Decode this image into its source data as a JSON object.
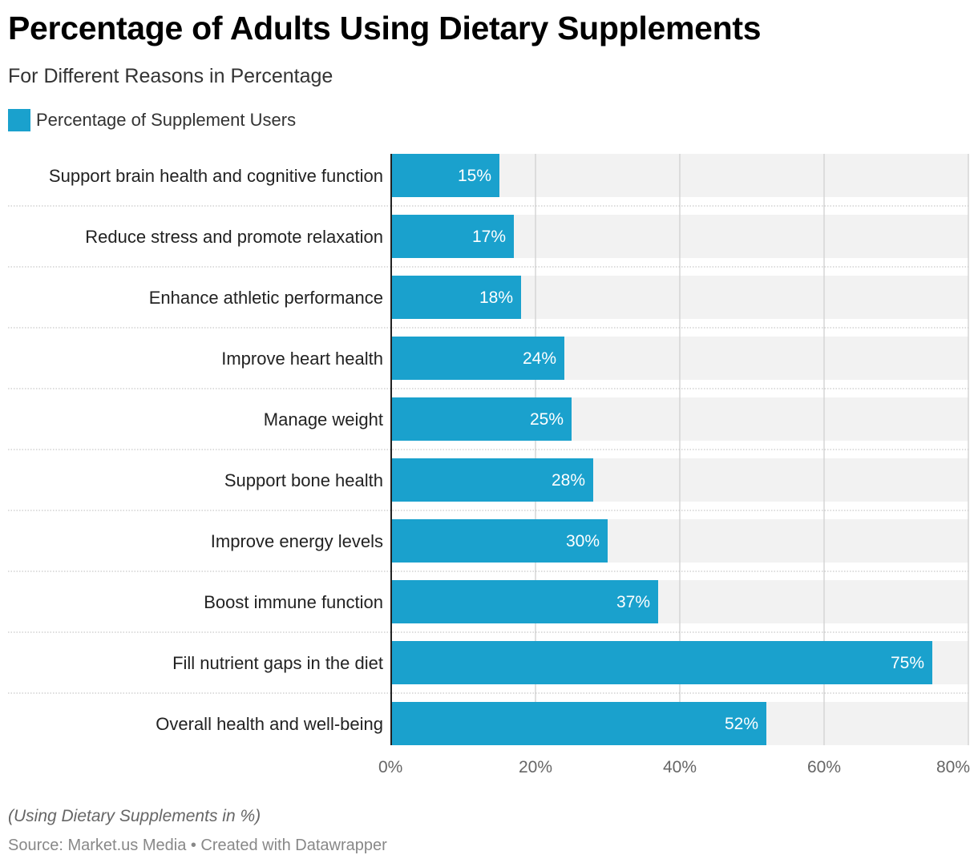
{
  "header": {
    "title": "Percentage of Adults Using Dietary Supplements",
    "subtitle": "For Different Reasons in Percentage"
  },
  "legend": {
    "label": "Percentage of Supplement Users",
    "color": "#1aa1cd"
  },
  "footer": {
    "notes": "(Using Dietary Supplements in %)",
    "source": "Source: Market.us Media • Created with Datawrapper"
  },
  "colors": {
    "bar": "#1aa1cd",
    "bar_background": "#f2f2f2",
    "grid": "#d0d0d0",
    "axis": "#222222",
    "value_label": "#ffffff",
    "tick_label": "#666666"
  },
  "chart_data": {
    "type": "bar",
    "orientation": "horizontal",
    "title": "Percentage of Adults Using Dietary Supplements",
    "subtitle": "For Different Reasons in Percentage",
    "xlabel": "",
    "ylabel": "",
    "xlim": [
      0,
      80
    ],
    "x_ticks": [
      0,
      20,
      40,
      60,
      80
    ],
    "x_tick_labels": [
      "0%",
      "20%",
      "40%",
      "60%",
      "80%"
    ],
    "grid": true,
    "legend_position": "top-left",
    "categories": [
      "Support brain health and cognitive function",
      "Reduce stress and promote relaxation",
      "Enhance athletic performance",
      "Improve heart health",
      "Manage weight",
      "Support bone health",
      "Improve energy levels",
      "Boost immune function",
      "Fill nutrient gaps in the diet",
      "Overall health and well-being"
    ],
    "series": [
      {
        "name": "Percentage of Supplement Users",
        "values": [
          15,
          17,
          18,
          24,
          25,
          28,
          30,
          37,
          75,
          52
        ],
        "labels": [
          "15%",
          "17%",
          "18%",
          "24%",
          "25%",
          "28%",
          "30%",
          "37%",
          "75%",
          "52%"
        ]
      }
    ]
  }
}
